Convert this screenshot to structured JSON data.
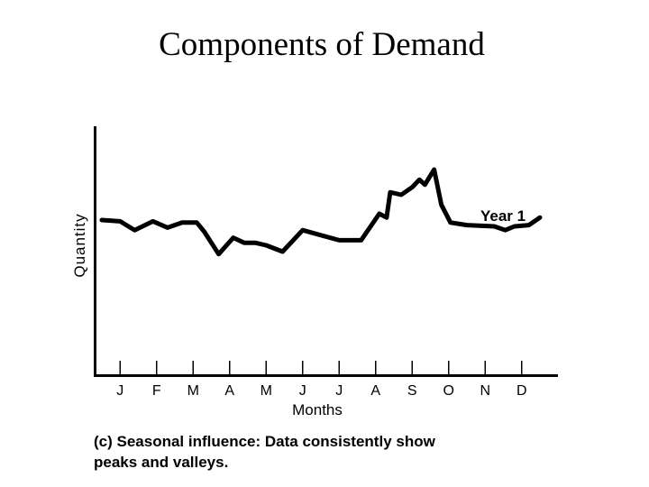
{
  "page": {
    "title": "Components of Demand",
    "caption_lines": [
      "(c) Seasonal influence: Data consistently show",
      "peaks and valleys."
    ]
  },
  "chart_data": {
    "type": "line",
    "title": "Components of Demand",
    "xlabel": "Months",
    "ylabel": "Quantity",
    "categories": [
      "J",
      "F",
      "M",
      "A",
      "M",
      "J",
      "J",
      "A",
      "S",
      "O",
      "N",
      "D"
    ],
    "xlim": [
      0,
      12.5
    ],
    "ylim": [
      0,
      100
    ],
    "grid": false,
    "axis_value_labels": false,
    "series": [
      {
        "name": "Year 1",
        "color": "#000000",
        "x": [
          0,
          0.5,
          0.9,
          1.4,
          1.8,
          2.2,
          2.6,
          2.8,
          3.2,
          3.6,
          3.9,
          4.2,
          4.5,
          4.95,
          5.5,
          6.0,
          6.5,
          7.1,
          7.6,
          7.8,
          7.9,
          8.2,
          8.5,
          8.7,
          8.85,
          9.1,
          9.3,
          9.55,
          10.0,
          10.75,
          11.05,
          11.3,
          11.7,
          12.0
        ],
        "y": [
          60,
          59.5,
          56,
          59.5,
          57,
          59,
          59,
          55.5,
          46.5,
          53,
          51,
          51,
          50,
          47.5,
          56,
          54,
          52,
          52,
          62.5,
          61,
          71,
          70,
          73,
          76,
          74,
          80,
          66,
          59,
          58,
          57.5,
          56,
          57.5,
          58,
          61
        ]
      }
    ]
  }
}
